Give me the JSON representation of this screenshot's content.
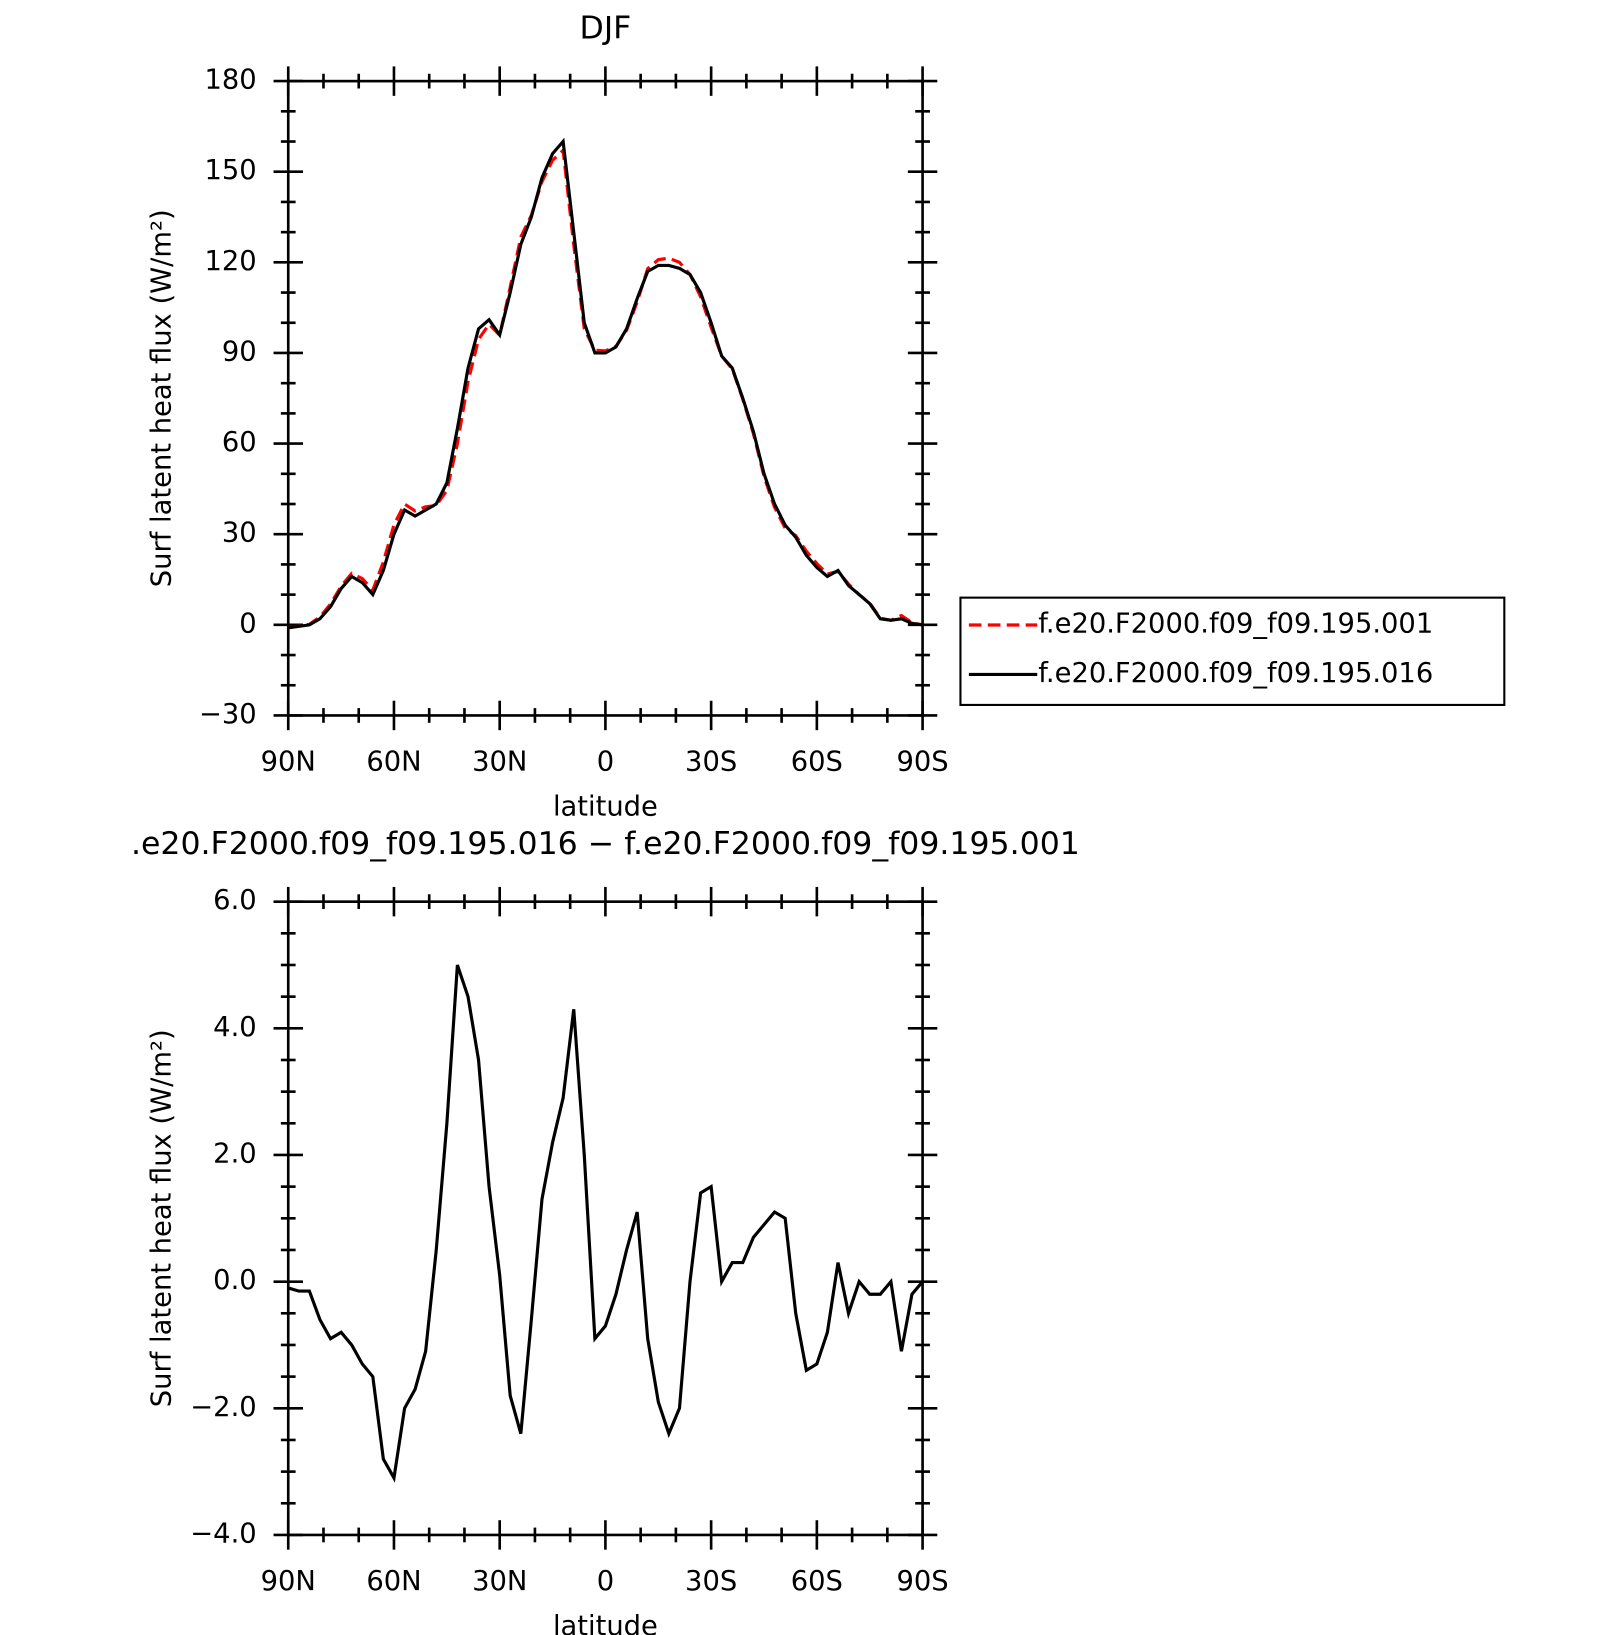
{
  "chart_data": [
    {
      "type": "line",
      "title": "DJF",
      "xlabel": "latitude",
      "ylabel": "Surf latent heat flux (W/m²)",
      "x": [
        90,
        87,
        84,
        81,
        78,
        75,
        72,
        69,
        66,
        63,
        60,
        57,
        54,
        51,
        48,
        45,
        42,
        39,
        36,
        33,
        30,
        27,
        24,
        21,
        18,
        15,
        12,
        9,
        6,
        3,
        0,
        -3,
        -6,
        -9,
        -12,
        -15,
        -18,
        -21,
        -24,
        -27,
        -30,
        -33,
        -36,
        -39,
        -42,
        -45,
        -48,
        -51,
        -54,
        -57,
        -60,
        -63,
        -66,
        -69,
        -72,
        -75,
        -78,
        -81,
        -84,
        -87,
        -90
      ],
      "series": [
        {
          "name": "f.e20.F2000.f09_f09.195.001",
          "color": "#ff0000",
          "style": "dashed",
          "values": [
            -0.9,
            -0.4,
            0.2,
            2.6,
            6.9,
            12.8,
            17,
            15.3,
            11.5,
            20.8,
            33.1,
            40,
            37.7,
            39.1,
            39.5,
            44.5,
            60,
            80.5,
            94.5,
            99.5,
            95.9,
            111.8,
            128.4,
            135.6,
            146.7,
            153.8,
            157.1,
            125.7,
            98,
            90.9,
            90.7,
            92.2,
            97.5,
            106.9,
            117.9,
            120.9,
            121.4,
            120,
            116,
            108.6,
            98.5,
            89,
            84.7,
            74.7,
            63.3,
            49.1,
            38.9,
            32,
            29.5,
            24.4,
            20.3,
            16.8,
            17.7,
            13.5,
            10,
            7.2,
            2.2,
            1.5,
            3.1,
            0.7,
            0
          ]
        },
        {
          "name": "f.e20.F2000.f09_f09.195.016",
          "color": "#000000",
          "style": "solid",
          "values": [
            -1,
            -0.5,
            0,
            2,
            6,
            12,
            16,
            14,
            10,
            18,
            30,
            38,
            36,
            38,
            40,
            47,
            65,
            85,
            98,
            101,
            96,
            110,
            126,
            135,
            148,
            156,
            160,
            130,
            100,
            90,
            90,
            92,
            98,
            108,
            117,
            119,
            119,
            118,
            116,
            110,
            100,
            89,
            85,
            75,
            64,
            50,
            40,
            33,
            29,
            23,
            19,
            16,
            18,
            13,
            10,
            7,
            2,
            1.5,
            2,
            0.5,
            0
          ]
        }
      ],
      "xlim": [
        90,
        -90
      ],
      "xticks": [
        {
          "value": 90,
          "label": "90N"
        },
        {
          "value": 60,
          "label": "60N"
        },
        {
          "value": 30,
          "label": "30N"
        },
        0,
        {
          "value": -30,
          "label": "30S"
        },
        {
          "value": -60,
          "label": "60S"
        },
        {
          "value": -90,
          "label": "90S"
        }
      ],
      "ylim": [
        -30,
        180
      ],
      "yticks": [
        {
          "value": -30,
          "label": "−30"
        },
        0,
        30,
        60,
        90,
        120,
        150,
        180
      ],
      "legend": "right"
    },
    {
      "type": "line",
      "title": ".e20.F2000.f09_f09.195.016 − f.e20.F2000.f09_f09.195.001",
      "xlabel": "latitude",
      "ylabel": "Surf latent heat flux (W/m²)",
      "x": [
        90,
        87,
        84,
        81,
        78,
        75,
        72,
        69,
        66,
        63,
        60,
        57,
        54,
        51,
        48,
        45,
        42,
        39,
        36,
        33,
        30,
        27,
        24,
        21,
        18,
        15,
        12,
        9,
        6,
        3,
        0,
        -3,
        -6,
        -9,
        -12,
        -15,
        -18,
        -21,
        -24,
        -27,
        -30,
        -33,
        -36,
        -39,
        -42,
        -45,
        -48,
        -51,
        -54,
        -57,
        -60,
        -63,
        -66,
        -69,
        -72,
        -75,
        -78,
        -81,
        -84,
        -87,
        -90
      ],
      "series": [
        {
          "color": "#000000",
          "style": "solid",
          "values": [
            -0.1,
            -0.15,
            -0.15,
            -0.6,
            -0.9,
            -0.8,
            -1,
            -1.3,
            -1.5,
            -2.8,
            -3.1,
            -2,
            -1.7,
            -1.1,
            0.5,
            2.5,
            5,
            4.5,
            3.5,
            1.5,
            0.1,
            -1.8,
            -2.4,
            -0.6,
            1.3,
            2.2,
            2.9,
            4.3,
            2,
            -0.9,
            -0.7,
            -0.2,
            0.5,
            1.1,
            -0.9,
            -1.9,
            -2.4,
            -2,
            0,
            1.4,
            1.5,
            0,
            0.3,
            0.3,
            0.7,
            0.9,
            1.1,
            1,
            -0.5,
            -1.4,
            -1.3,
            -0.8,
            0.3,
            -0.5,
            0,
            -0.2,
            -0.2,
            0,
            -1.1,
            -0.2,
            0
          ]
        }
      ],
      "xlim": [
        90,
        -90
      ],
      "xticks": [
        {
          "value": 90,
          "label": "90N"
        },
        {
          "value": 60,
          "label": "60N"
        },
        {
          "value": 30,
          "label": "30N"
        },
        0,
        {
          "value": -30,
          "label": "30S"
        },
        {
          "value": -60,
          "label": "60S"
        },
        {
          "value": -90,
          "label": "90S"
        }
      ],
      "ylim": [
        -4,
        6
      ],
      "yticks": [
        {
          "value": -4,
          "label": "−4.0"
        },
        {
          "value": -2,
          "label": "−2.0"
        },
        {
          "value": 0,
          "label": "0.0"
        },
        {
          "value": 2,
          "label": "2.0"
        },
        {
          "value": 4,
          "label": "4.0"
        },
        {
          "value": 6,
          "label": "6.0"
        }
      ]
    }
  ]
}
